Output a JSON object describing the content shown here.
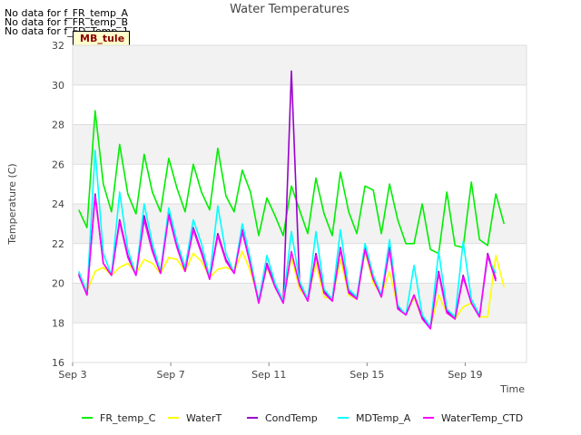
{
  "no_data_messages": [
    "No data for f_FR_temp_A",
    "No data for f_FR_temp_B",
    "No data for f_FD_Temp_1"
  ],
  "badge": "MB_tule",
  "chart_data": {
    "type": "line",
    "title": "Water Temperatures",
    "xlabel": "Time",
    "ylabel": "Temperature (C)",
    "ylim": [
      16,
      32
    ],
    "yticks": [
      16,
      18,
      20,
      22,
      24,
      26,
      28,
      30,
      32
    ],
    "xlim": [
      "2023-09-03",
      "2023-09-21T12:00"
    ],
    "xticks": [
      {
        "date": "2023-09-03",
        "label": "Sep 3"
      },
      {
        "date": "2023-09-07",
        "label": "Sep 7"
      },
      {
        "date": "2023-09-11",
        "label": "Sep 11"
      },
      {
        "date": "2023-09-15",
        "label": "Sep 15"
      },
      {
        "date": "2023-09-19",
        "label": "Sep 19"
      }
    ],
    "grid": "horizontal bands",
    "legend_position": "bottom",
    "series": [
      {
        "name": "FR_temp_C",
        "color": "#00ee00",
        "x": [
          "2023-09-03T06:00",
          "2023-09-03T14:00",
          "2023-09-03T22:00",
          "2023-09-04T06:00",
          "2023-09-04T14:00",
          "2023-09-04T22:00",
          "2023-09-05T06:00",
          "2023-09-05T14:00",
          "2023-09-05T22:00",
          "2023-09-06T06:00",
          "2023-09-06T14:00",
          "2023-09-06T22:00",
          "2023-09-07T06:00",
          "2023-09-07T14:00",
          "2023-09-07T22:00",
          "2023-09-08T06:00",
          "2023-09-08T14:00",
          "2023-09-08T22:00",
          "2023-09-09T06:00",
          "2023-09-09T14:00",
          "2023-09-09T22:00",
          "2023-09-10T06:00",
          "2023-09-10T14:00",
          "2023-09-10T22:00",
          "2023-09-11T06:00",
          "2023-09-11T14:00",
          "2023-09-11T22:00",
          "2023-09-12T06:00",
          "2023-09-12T14:00",
          "2023-09-12T22:00",
          "2023-09-13T06:00",
          "2023-09-13T14:00",
          "2023-09-13T22:00",
          "2023-09-14T06:00",
          "2023-09-14T14:00",
          "2023-09-14T22:00",
          "2023-09-15T06:00",
          "2023-09-15T14:00",
          "2023-09-15T22:00",
          "2023-09-16T06:00",
          "2023-09-16T14:00",
          "2023-09-16T22:00",
          "2023-09-17T06:00",
          "2023-09-17T14:00",
          "2023-09-17T22:00",
          "2023-09-18T06:00",
          "2023-09-18T14:00",
          "2023-09-18T22:00",
          "2023-09-19T06:00",
          "2023-09-19T14:00",
          "2023-09-19T22:00",
          "2023-09-20T06:00",
          "2023-09-20T14:00",
          "2023-09-20T22:00",
          "2023-09-21T06:00"
        ],
        "y": [
          23.7,
          22.8,
          28.7,
          25.0,
          23.6,
          27.0,
          24.5,
          23.5,
          26.5,
          24.6,
          23.6,
          26.3,
          24.8,
          23.6,
          26.0,
          24.6,
          23.7,
          26.8,
          24.4,
          23.6,
          25.7,
          24.6,
          22.4,
          24.3,
          23.4,
          22.4,
          24.9,
          23.7,
          22.5,
          25.3,
          23.5,
          22.4,
          25.6,
          23.6,
          22.5,
          24.9,
          24.7,
          22.5,
          25.0,
          23.2,
          22.0,
          22.0,
          24.0,
          21.7,
          21.5,
          24.6,
          21.9,
          21.8,
          25.1,
          22.2,
          21.9,
          24.5,
          23.0,
          null,
          null
        ]
      },
      {
        "name": "WaterT",
        "color": "#ffff00",
        "x": [
          "2023-09-03T06:00",
          "2023-09-03T14:00",
          "2023-09-03T22:00",
          "2023-09-04T06:00",
          "2023-09-04T14:00",
          "2023-09-04T22:00",
          "2023-09-05T06:00",
          "2023-09-05T14:00",
          "2023-09-05T22:00",
          "2023-09-06T06:00",
          "2023-09-06T14:00",
          "2023-09-06T22:00",
          "2023-09-07T06:00",
          "2023-09-07T14:00",
          "2023-09-07T22:00",
          "2023-09-08T06:00",
          "2023-09-08T14:00",
          "2023-09-08T22:00",
          "2023-09-09T06:00",
          "2023-09-09T14:00",
          "2023-09-09T22:00",
          "2023-09-10T06:00",
          "2023-09-10T14:00",
          "2023-09-10T22:00",
          "2023-09-11T06:00",
          "2023-09-11T14:00",
          "2023-09-11T22:00",
          "2023-09-12T06:00",
          "2023-09-12T14:00",
          "2023-09-12T22:00",
          "2023-09-13T06:00",
          "2023-09-13T14:00",
          "2023-09-13T22:00",
          "2023-09-14T06:00",
          "2023-09-14T14:00",
          "2023-09-14T22:00",
          "2023-09-15T06:00",
          "2023-09-15T14:00",
          "2023-09-15T22:00",
          "2023-09-16T06:00",
          "2023-09-16T14:00",
          "2023-09-16T22:00",
          "2023-09-17T06:00",
          "2023-09-17T14:00",
          "2023-09-17T22:00",
          "2023-09-18T06:00",
          "2023-09-18T14:00",
          "2023-09-18T22:00",
          "2023-09-19T06:00",
          "2023-09-19T14:00",
          "2023-09-19T22:00",
          "2023-09-20T06:00",
          "2023-09-20T14:00",
          "2023-09-20T22:00",
          "2023-09-21T06:00"
        ],
        "y": [
          20.4,
          19.6,
          20.6,
          20.8,
          20.4,
          20.8,
          21.0,
          20.5,
          21.2,
          21.0,
          20.5,
          21.3,
          21.2,
          20.6,
          21.5,
          21.1,
          20.3,
          20.7,
          20.8,
          20.6,
          21.6,
          20.6,
          19.2,
          20.8,
          19.8,
          19.2,
          21.3,
          19.7,
          19.2,
          21.0,
          19.3,
          19.2,
          21.2,
          19.4,
          19.2,
          21.6,
          20.0,
          19.4,
          20.6,
          18.8,
          18.4,
          19.3,
          18.2,
          17.8,
          19.4,
          18.5,
          18.2,
          18.8,
          19.0,
          18.3,
          18.3,
          21.4,
          19.8,
          null,
          null
        ]
      },
      {
        "name": "CondTemp",
        "color": "#9900cc",
        "x": [
          "2023-09-03T06:00",
          "2023-09-03T14:00",
          "2023-09-03T22:00",
          "2023-09-04T06:00",
          "2023-09-04T14:00",
          "2023-09-04T22:00",
          "2023-09-05T06:00",
          "2023-09-05T14:00",
          "2023-09-05T22:00",
          "2023-09-06T06:00",
          "2023-09-06T14:00",
          "2023-09-06T22:00",
          "2023-09-07T06:00",
          "2023-09-07T14:00",
          "2023-09-07T22:00",
          "2023-09-08T06:00",
          "2023-09-08T14:00",
          "2023-09-08T22:00",
          "2023-09-09T06:00",
          "2023-09-09T14:00",
          "2023-09-09T22:00",
          "2023-09-10T06:00",
          "2023-09-10T14:00",
          "2023-09-10T22:00",
          "2023-09-11T06:00",
          "2023-09-11T14:00",
          "2023-09-11T22:00",
          "2023-09-12T06:00",
          "2023-09-12T14:00",
          "2023-09-12T22:00",
          "2023-09-13T06:00",
          "2023-09-13T14:00",
          "2023-09-13T22:00",
          "2023-09-14T06:00",
          "2023-09-14T14:00",
          "2023-09-14T22:00",
          "2023-09-15T06:00",
          "2023-09-15T14:00",
          "2023-09-15T22:00",
          "2023-09-16T06:00",
          "2023-09-16T14:00",
          "2023-09-16T22:00",
          "2023-09-17T06:00",
          "2023-09-17T14:00",
          "2023-09-17T22:00",
          "2023-09-18T06:00",
          "2023-09-18T14:00",
          "2023-09-18T22:00",
          "2023-09-19T06:00",
          "2023-09-19T14:00",
          "2023-09-19T22:00",
          "2023-09-20T06:00",
          "2023-09-20T14:00",
          "2023-09-20T22:00",
          "2023-09-21T06:00"
        ],
        "y": [
          20.5,
          19.4,
          24.5,
          21.0,
          20.4,
          23.2,
          21.4,
          20.4,
          23.4,
          21.7,
          20.5,
          23.5,
          21.9,
          20.6,
          22.8,
          21.6,
          20.2,
          22.5,
          21.2,
          20.5,
          22.7,
          21.0,
          19.0,
          21.0,
          19.9,
          19.0,
          30.7,
          20.0,
          19.1,
          21.5,
          19.6,
          19.1,
          21.8,
          19.6,
          19.2,
          21.8,
          20.3,
          19.3,
          21.8,
          18.8,
          18.4,
          19.4,
          18.3,
          17.7,
          20.6,
          18.6,
          18.2,
          20.4,
          19.0,
          18.3,
          21.5,
          20.2,
          null,
          null,
          null
        ]
      },
      {
        "name": "MDTemp_A",
        "color": "#00ffff",
        "x": [
          "2023-09-03T06:00",
          "2023-09-03T14:00",
          "2023-09-03T22:00",
          "2023-09-04T06:00",
          "2023-09-04T14:00",
          "2023-09-04T22:00",
          "2023-09-05T06:00",
          "2023-09-05T14:00",
          "2023-09-05T22:00",
          "2023-09-06T06:00",
          "2023-09-06T14:00",
          "2023-09-06T22:00",
          "2023-09-07T06:00",
          "2023-09-07T14:00",
          "2023-09-07T22:00",
          "2023-09-08T06:00",
          "2023-09-08T14:00",
          "2023-09-08T22:00",
          "2023-09-09T06:00",
          "2023-09-09T14:00",
          "2023-09-09T22:00",
          "2023-09-10T06:00",
          "2023-09-10T14:00",
          "2023-09-10T22:00",
          "2023-09-11T06:00",
          "2023-09-11T14:00",
          "2023-09-11T22:00",
          "2023-09-12T06:00",
          "2023-09-12T14:00",
          "2023-09-12T22:00",
          "2023-09-13T06:00",
          "2023-09-13T14:00",
          "2023-09-13T22:00",
          "2023-09-14T06:00",
          "2023-09-14T14:00",
          "2023-09-14T22:00",
          "2023-09-15T06:00",
          "2023-09-15T14:00",
          "2023-09-15T22:00",
          "2023-09-16T06:00",
          "2023-09-16T14:00",
          "2023-09-16T22:00",
          "2023-09-17T06:00",
          "2023-09-17T14:00",
          "2023-09-17T22:00",
          "2023-09-18T06:00",
          "2023-09-18T14:00",
          "2023-09-18T22:00",
          "2023-09-19T06:00",
          "2023-09-19T14:00",
          "2023-09-19T22:00",
          "2023-09-20T06:00",
          "2023-09-20T14:00",
          "2023-09-20T22:00",
          "2023-09-21T06:00"
        ],
        "y": [
          20.6,
          19.5,
          26.7,
          21.5,
          20.4,
          24.6,
          21.7,
          20.4,
          24.0,
          22.0,
          20.6,
          23.8,
          22.1,
          20.8,
          23.2,
          22.0,
          20.3,
          23.9,
          21.5,
          20.5,
          23.0,
          21.2,
          19.1,
          21.4,
          20.0,
          19.1,
          22.6,
          20.1,
          19.2,
          22.6,
          19.7,
          19.2,
          22.7,
          19.7,
          19.3,
          22.0,
          20.4,
          19.4,
          22.2,
          18.9,
          18.4,
          20.9,
          18.4,
          17.8,
          21.6,
          18.7,
          18.3,
          22.1,
          19.2,
          18.4,
          21.3,
          20.5,
          null,
          null,
          null
        ]
      },
      {
        "name": "WaterTemp_CTD",
        "color": "#ff00ff",
        "x": [
          "2023-09-03T06:00",
          "2023-09-03T14:00",
          "2023-09-03T22:00",
          "2023-09-04T06:00",
          "2023-09-04T14:00",
          "2023-09-04T22:00",
          "2023-09-05T06:00",
          "2023-09-05T14:00",
          "2023-09-05T22:00",
          "2023-09-06T06:00",
          "2023-09-06T14:00",
          "2023-09-06T22:00",
          "2023-09-07T06:00",
          "2023-09-07T14:00",
          "2023-09-07T22:00",
          "2023-09-08T06:00",
          "2023-09-08T14:00",
          "2023-09-08T22:00",
          "2023-09-09T06:00",
          "2023-09-09T14:00",
          "2023-09-09T22:00",
          "2023-09-10T06:00",
          "2023-09-10T14:00",
          "2023-09-10T22:00",
          "2023-09-11T06:00",
          "2023-09-11T14:00",
          "2023-09-11T22:00",
          "2023-09-12T06:00",
          "2023-09-12T14:00",
          "2023-09-12T22:00",
          "2023-09-13T06:00",
          "2023-09-13T14:00",
          "2023-09-13T22:00",
          "2023-09-14T06:00",
          "2023-09-14T14:00",
          "2023-09-14T22:00",
          "2023-09-15T06:00",
          "2023-09-15T14:00",
          "2023-09-15T22:00",
          "2023-09-16T06:00",
          "2023-09-16T14:00",
          "2023-09-16T22:00",
          "2023-09-17T06:00",
          "2023-09-17T14:00",
          "2023-09-17T22:00",
          "2023-09-18T06:00",
          "2023-09-18T14:00",
          "2023-09-18T22:00",
          "2023-09-19T06:00",
          "2023-09-19T14:00",
          "2023-09-19T22:00",
          "2023-09-20T06:00",
          "2023-09-20T14:00",
          "2023-09-20T22:00",
          "2023-09-21T06:00"
        ],
        "y": [
          20.4,
          19.4,
          24.4,
          21.0,
          20.4,
          23.1,
          21.3,
          20.4,
          23.2,
          21.6,
          20.5,
          23.4,
          21.8,
          20.6,
          22.7,
          21.5,
          20.2,
          22.4,
          21.1,
          20.5,
          22.6,
          20.9,
          19.0,
          20.9,
          19.8,
          19.0,
          21.6,
          19.9,
          19.1,
          21.4,
          19.5,
          19.1,
          21.7,
          19.5,
          19.2,
          21.7,
          20.2,
          19.3,
          21.7,
          18.7,
          18.4,
          19.4,
          18.2,
          17.7,
          20.5,
          18.5,
          18.2,
          20.3,
          19.0,
          18.3,
          21.4,
          20.1,
          null,
          null,
          null
        ]
      }
    ]
  }
}
